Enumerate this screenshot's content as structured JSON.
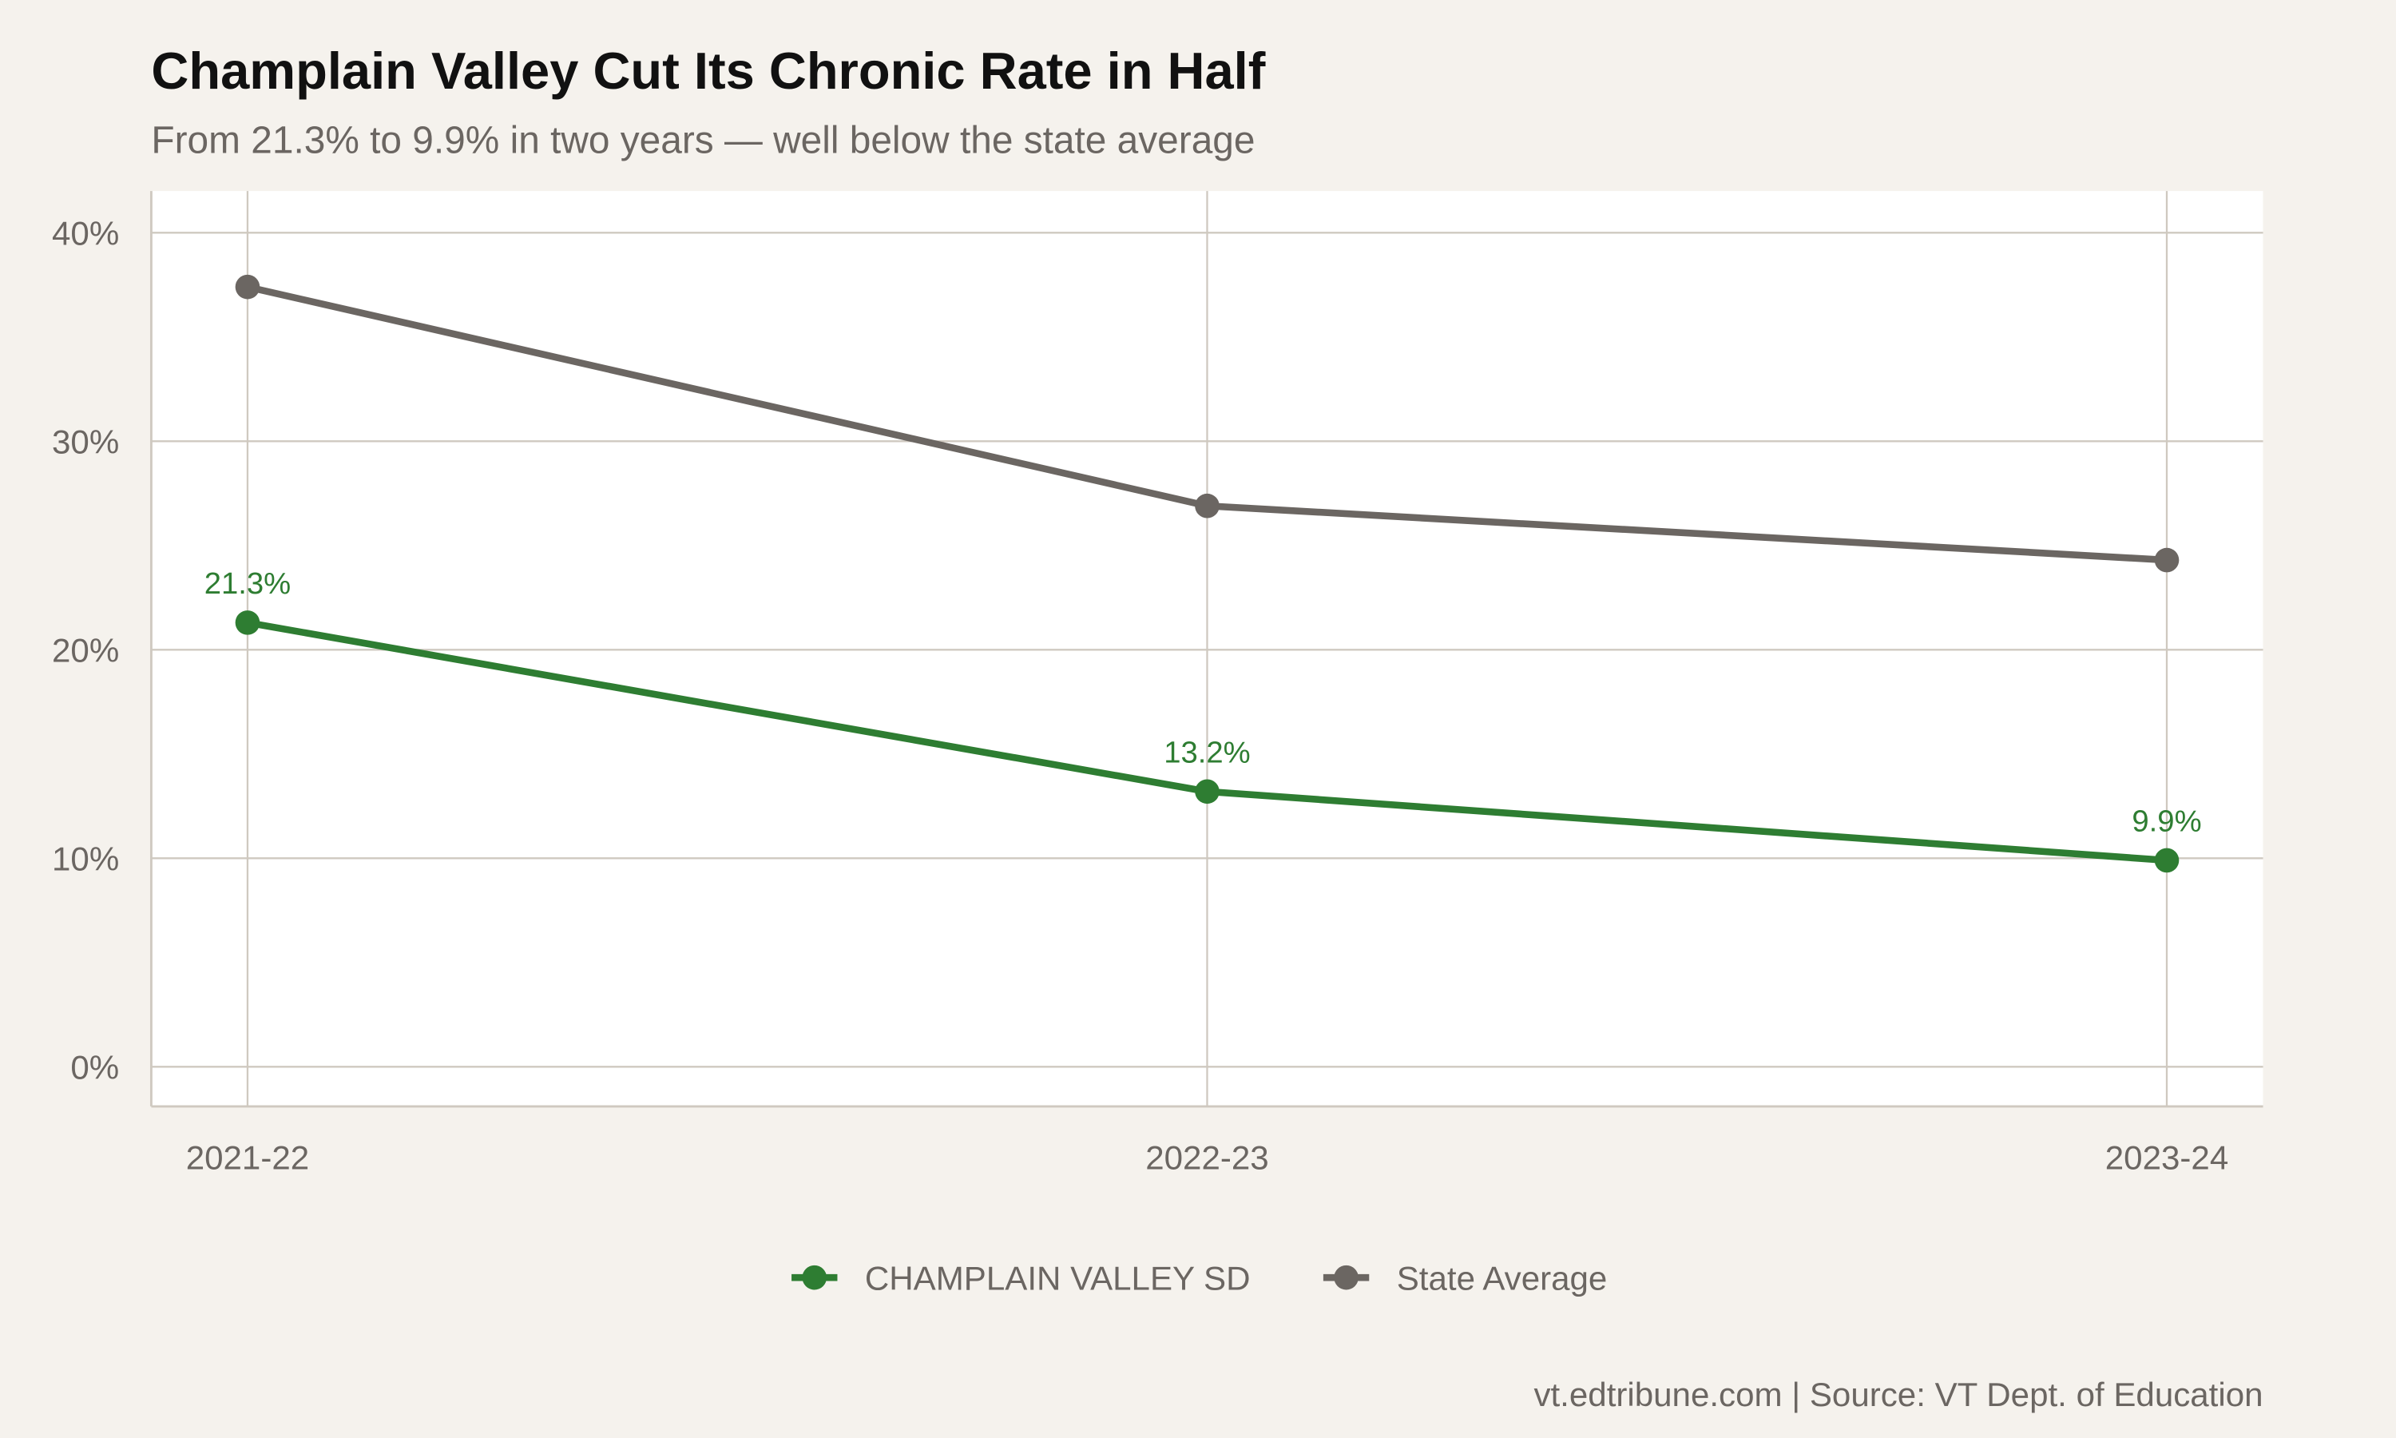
{
  "chart_data": {
    "type": "line",
    "title": "Champlain Valley Cut Its Chronic Rate in Half",
    "subtitle": "From 21.3% to 9.9% in two years — well below the state average",
    "caption": "vt.edtribune.com | Source: VT Dept. of Education",
    "xlabel": "",
    "ylabel": "",
    "categories": [
      "2021-22",
      "2022-23",
      "2023-24"
    ],
    "yticks": [
      0,
      10,
      20,
      30,
      40
    ],
    "ytick_labels": [
      "0%",
      "10%",
      "20%",
      "30%",
      "40%"
    ],
    "ylim": [
      -1.9,
      42
    ],
    "grid": true,
    "legend_position": "bottom",
    "series": [
      {
        "name": "CHAMPLAIN VALLEY SD",
        "values": [
          21.3,
          13.2,
          9.9
        ],
        "labels": [
          "21.3%",
          "13.2%",
          "9.9%"
        ],
        "color": "#2e7d32"
      },
      {
        "name": "State Average",
        "values": [
          37.4,
          26.9,
          24.3
        ],
        "color": "#6b6662"
      }
    ],
    "colors": {
      "background": "#f5f2ed",
      "panel": "#ffffff",
      "grid": "#cfc9c0",
      "text": "#6b6662",
      "title": "#111111"
    }
  }
}
